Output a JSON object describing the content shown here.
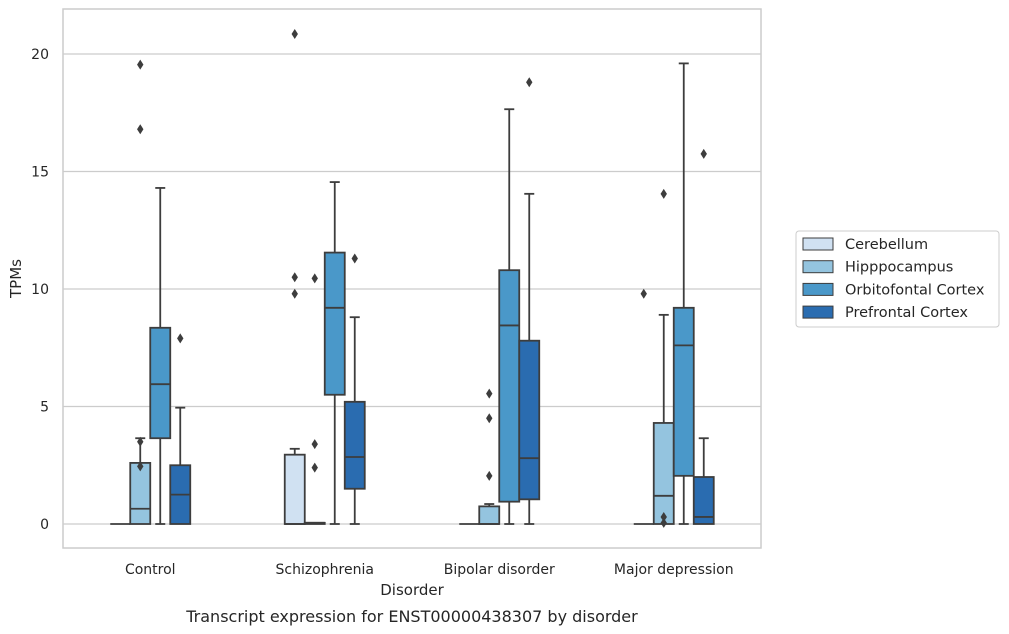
{
  "caption": "Transcript expression for ENST00000438307 by disorder",
  "chart_data": {
    "type": "box",
    "xlabel": "Disorder",
    "ylabel": "TPMs",
    "ylim": [
      -1,
      22
    ],
    "yticks": [
      0,
      5,
      10,
      15,
      20
    ],
    "grid": "horizontal",
    "legend_position": "right",
    "categories": [
      "Control",
      "Schizophrenia",
      "Bipolar disorder",
      "Major depression"
    ],
    "series": [
      {
        "name": "Cerebellum",
        "color": "#d0e1f2",
        "boxes": [
          {
            "min": 0,
            "q1": 0,
            "median": 0,
            "q3": 0,
            "max": 0,
            "outliers": []
          },
          {
            "min": 0,
            "q1": 0,
            "median": 0,
            "q3": 2.95,
            "max": 3.2,
            "outliers": [
              9.8,
              10.5,
              20.85
            ]
          },
          {
            "min": 0,
            "q1": 0,
            "median": 0,
            "q3": 0,
            "max": 0,
            "outliers": []
          },
          {
            "min": 0,
            "q1": 0,
            "median": 0,
            "q3": 0,
            "max": 0,
            "outliers": [
              9.8
            ]
          }
        ]
      },
      {
        "name": "Hipppocampus",
        "color": "#94c4df",
        "boxes": [
          {
            "min": 0,
            "q1": 0,
            "median": 0.65,
            "q3": 2.6,
            "max": 3.65,
            "outliers": [
              2.45,
              3.5,
              16.8,
              19.55
            ]
          },
          {
            "min": 0,
            "q1": 0,
            "median": 0.05,
            "q3": 0.05,
            "max": 0.05,
            "outliers": [
              2.4,
              3.4,
              10.45
            ]
          },
          {
            "min": 0,
            "q1": 0,
            "median": 0,
            "q3": 0.75,
            "max": 0.85,
            "outliers": [
              2.05,
              4.5,
              5.55
            ]
          },
          {
            "min": 0,
            "q1": 0,
            "median": 1.2,
            "q3": 4.3,
            "max": 8.9,
            "outliers": [
              0.05,
              0.3,
              14.05
            ]
          }
        ]
      },
      {
        "name": "Orbitofontal Cortex",
        "color": "#4a98c9",
        "boxes": [
          {
            "min": 0,
            "q1": 3.65,
            "median": 5.95,
            "q3": 8.35,
            "max": 14.3,
            "outliers": []
          },
          {
            "min": 0,
            "q1": 5.5,
            "median": 9.2,
            "q3": 11.55,
            "max": 14.55,
            "outliers": []
          },
          {
            "min": 0,
            "q1": 0.95,
            "median": 8.45,
            "q3": 10.8,
            "max": 17.65,
            "outliers": []
          },
          {
            "min": 0,
            "q1": 2.05,
            "median": 7.6,
            "q3": 9.2,
            "max": 19.6,
            "outliers": []
          }
        ]
      },
      {
        "name": "Prefrontal Cortex",
        "color": "#2a6cb0",
        "boxes": [
          {
            "min": 0,
            "q1": 0,
            "median": 1.25,
            "q3": 2.5,
            "max": 4.95,
            "outliers": [
              7.9
            ]
          },
          {
            "min": 0,
            "q1": 1.5,
            "median": 2.85,
            "q3": 5.2,
            "max": 8.8,
            "outliers": [
              11.3
            ]
          },
          {
            "min": 0,
            "q1": 1.05,
            "median": 2.8,
            "q3": 7.8,
            "max": 14.05,
            "outliers": [
              18.8
            ]
          },
          {
            "min": 0,
            "q1": 0,
            "median": 0.3,
            "q3": 2.0,
            "max": 3.65,
            "outliers": [
              15.75
            ]
          }
        ]
      }
    ]
  }
}
